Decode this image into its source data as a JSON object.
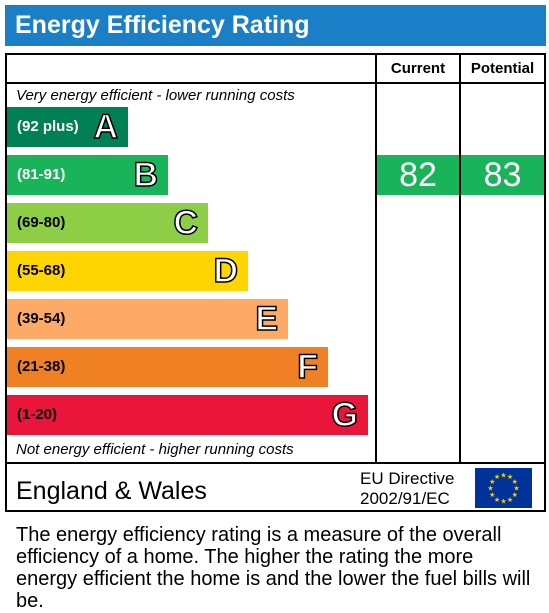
{
  "title": "Energy Efficiency Rating",
  "columns": {
    "current": "Current",
    "potential": "Potential"
  },
  "top_note": "Very energy efficient - lower running costs",
  "bottom_note": "Not energy efficient - higher running costs",
  "region": "England & Wales",
  "directive": {
    "line1": "EU Directive",
    "line2": "2002/91/EC"
  },
  "description": "The energy efficiency rating is a measure of the overall efficiency of a home. The higher the rating the more energy efficient the home is and the lower the fuel bills will be.",
  "colors": {
    "header": "#1a7fc7",
    "A": "#008054",
    "B": "#19b459",
    "C": "#8dce46",
    "D": "#ffd500",
    "E": "#fcaa65",
    "F": "#ef8023",
    "G": "#e9153b",
    "eu_flag": "#003399"
  },
  "chart_data": {
    "type": "bar",
    "categories": [
      "A",
      "B",
      "C",
      "D",
      "E",
      "F",
      "G"
    ],
    "ranges": [
      "(92 plus)",
      "(81-91)",
      "(69-80)",
      "(55-68)",
      "(39-54)",
      "(21-38)",
      "(1-20)"
    ],
    "current": {
      "value": 82,
      "band": "B"
    },
    "potential": {
      "value": 83,
      "band": "B"
    }
  }
}
